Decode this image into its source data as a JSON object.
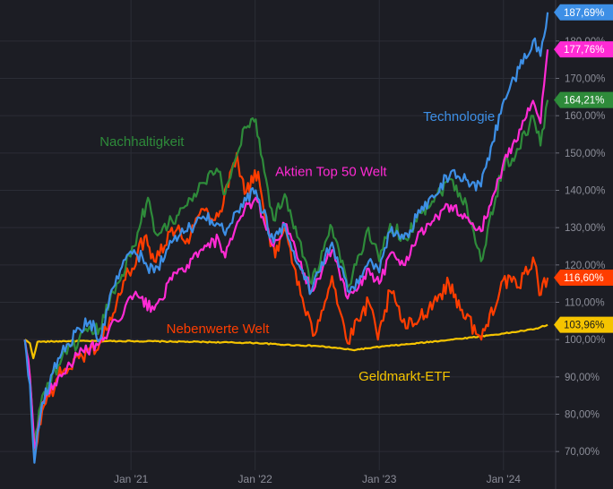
{
  "chart_data": {
    "type": "line",
    "x_axis": {
      "ticks": [
        "Jan '21",
        "Jan '22",
        "Jan '23",
        "Jan '24"
      ],
      "start": "2020-03-01",
      "end": "2024-05-15"
    },
    "y_axis": {
      "unit": "%",
      "ylim": [
        65,
        191
      ],
      "ticks": [
        "70,00%",
        "80,00%",
        "90,00%",
        "100,00%",
        "110,00%",
        "120,00%",
        "130,00%",
        "140,00%",
        "150,00%",
        "160,00%",
        "170,00%",
        "180,00%"
      ],
      "tick_values": [
        70,
        80,
        90,
        100,
        110,
        120,
        130,
        140,
        150,
        160,
        170,
        180
      ]
    },
    "grid": true,
    "series": [
      {
        "name": "Geldmarkt-ETF",
        "color": "#f5c400",
        "last_label": "103,96%",
        "points": [
          [
            "2020-02-24",
            100
          ],
          [
            "2020-03-10",
            99
          ],
          [
            "2020-03-20",
            95
          ],
          [
            "2020-04-01",
            99.4
          ],
          [
            "2020-07-01",
            99.6
          ],
          [
            "2021-01-01",
            99.6
          ],
          [
            "2021-07-01",
            99.4
          ],
          [
            "2022-01-01",
            99.1
          ],
          [
            "2022-04-01",
            98.6
          ],
          [
            "2022-07-01",
            98.3
          ],
          [
            "2022-09-01",
            97.7
          ],
          [
            "2022-10-15",
            97.2
          ],
          [
            "2022-12-01",
            97.7
          ],
          [
            "2023-01-15",
            98.2
          ],
          [
            "2023-04-01",
            98.8
          ],
          [
            "2023-07-01",
            99.7
          ],
          [
            "2023-10-01",
            100.6
          ],
          [
            "2024-01-01",
            101.6
          ],
          [
            "2024-04-01",
            102.8
          ],
          [
            "2024-05-10",
            103.96
          ]
        ]
      },
      {
        "name": "Nebenwerte Welt",
        "color": "#ff3d00",
        "last_label": "116,60%",
        "points": [
          [
            "2020-02-24",
            100
          ],
          [
            "2020-03-10",
            89
          ],
          [
            "2020-03-23",
            69
          ],
          [
            "2020-04-15",
            81
          ],
          [
            "2020-06-01",
            90
          ],
          [
            "2020-08-01",
            95
          ],
          [
            "2020-10-01",
            99
          ],
          [
            "2020-11-10",
            107
          ],
          [
            "2020-12-15",
            116
          ],
          [
            "2021-02-15",
            128
          ],
          [
            "2021-03-10",
            121
          ],
          [
            "2021-05-01",
            130
          ],
          [
            "2021-06-15",
            127
          ],
          [
            "2021-08-01",
            135
          ],
          [
            "2021-09-15",
            133
          ],
          [
            "2021-11-08",
            150
          ],
          [
            "2021-12-01",
            139
          ],
          [
            "2022-01-10",
            145
          ],
          [
            "2022-02-01",
            132
          ],
          [
            "2022-03-01",
            122
          ],
          [
            "2022-03-30",
            130
          ],
          [
            "2022-05-15",
            112
          ],
          [
            "2022-06-20",
            101
          ],
          [
            "2022-08-15",
            117
          ],
          [
            "2022-09-30",
            99
          ],
          [
            "2022-11-01",
            105
          ],
          [
            "2022-12-01",
            110
          ],
          [
            "2022-12-28",
            100
          ],
          [
            "2023-02-02",
            113
          ],
          [
            "2023-03-20",
            103
          ],
          [
            "2023-05-01",
            106
          ],
          [
            "2023-07-25",
            115
          ],
          [
            "2023-09-01",
            108
          ],
          [
            "2023-10-28",
            100
          ],
          [
            "2023-12-31",
            116
          ],
          [
            "2024-02-15",
            114
          ],
          [
            "2024-03-28",
            122
          ],
          [
            "2024-04-20",
            112
          ],
          [
            "2024-05-10",
            116.6
          ]
        ]
      },
      {
        "name": "Nachhaltigkeit",
        "color": "#2e8b3a",
        "last_label": "164,21%",
        "points": [
          [
            "2020-02-24",
            100
          ],
          [
            "2020-03-10",
            90
          ],
          [
            "2020-03-23",
            72
          ],
          [
            "2020-04-15",
            85
          ],
          [
            "2020-06-01",
            93
          ],
          [
            "2020-08-01",
            100
          ],
          [
            "2020-10-01",
            103
          ],
          [
            "2020-11-20",
            115
          ],
          [
            "2021-01-10",
            125
          ],
          [
            "2021-02-20",
            138
          ],
          [
            "2021-03-10",
            129
          ],
          [
            "2021-05-01",
            132
          ],
          [
            "2021-06-15",
            136
          ],
          [
            "2021-08-01",
            142
          ],
          [
            "2021-09-15",
            145
          ],
          [
            "2021-10-05",
            139
          ],
          [
            "2021-12-01",
            157
          ],
          [
            "2022-01-03",
            159
          ],
          [
            "2022-01-28",
            145
          ],
          [
            "2022-02-24",
            132
          ],
          [
            "2022-03-29",
            139
          ],
          [
            "2022-05-10",
            127
          ],
          [
            "2022-06-16",
            115
          ],
          [
            "2022-08-15",
            130
          ],
          [
            "2022-09-30",
            114
          ],
          [
            "2022-10-25",
            120
          ],
          [
            "2022-11-30",
            130
          ],
          [
            "2023-01-01",
            121
          ],
          [
            "2023-02-02",
            131
          ],
          [
            "2023-03-20",
            127
          ],
          [
            "2023-05-01",
            134
          ],
          [
            "2023-07-31",
            143
          ],
          [
            "2023-09-15",
            136
          ],
          [
            "2023-10-27",
            121
          ],
          [
            "2023-12-29",
            146
          ],
          [
            "2024-02-15",
            151
          ],
          [
            "2024-03-28",
            160
          ],
          [
            "2024-04-19",
            152
          ],
          [
            "2024-05-10",
            164.21
          ]
        ]
      },
      {
        "name": "Aktien Top 50 Welt",
        "color": "#ff2ad4",
        "last_label": "177,76%",
        "points": [
          [
            "2020-02-24",
            100
          ],
          [
            "2020-03-10",
            90
          ],
          [
            "2020-03-23",
            71
          ],
          [
            "2020-04-15",
            83
          ],
          [
            "2020-06-01",
            90
          ],
          [
            "2020-08-01",
            96
          ],
          [
            "2020-10-01",
            99
          ],
          [
            "2020-11-20",
            105
          ],
          [
            "2021-01-10",
            112
          ],
          [
            "2021-03-10",
            108
          ],
          [
            "2021-05-01",
            116
          ],
          [
            "2021-06-15",
            120
          ],
          [
            "2021-08-01",
            124
          ],
          [
            "2021-09-15",
            127
          ],
          [
            "2021-10-05",
            122
          ],
          [
            "2021-12-01",
            135
          ],
          [
            "2022-01-03",
            138
          ],
          [
            "2022-02-24",
            125
          ],
          [
            "2022-03-29",
            131
          ],
          [
            "2022-05-10",
            121
          ],
          [
            "2022-06-16",
            113
          ],
          [
            "2022-08-15",
            124
          ],
          [
            "2022-09-30",
            111
          ],
          [
            "2022-11-01",
            114
          ],
          [
            "2022-12-01",
            119
          ],
          [
            "2023-01-01",
            115
          ],
          [
            "2023-02-02",
            123
          ],
          [
            "2023-03-13",
            120
          ],
          [
            "2023-05-01",
            129
          ],
          [
            "2023-07-31",
            136
          ],
          [
            "2023-10-27",
            129
          ],
          [
            "2023-12-29",
            146
          ],
          [
            "2024-03-28",
            164
          ],
          [
            "2024-04-19",
            158
          ],
          [
            "2024-05-10",
            177.76
          ]
        ]
      },
      {
        "name": "Technologie",
        "color": "#3d8fe6",
        "last_label": "187,69%",
        "points": [
          [
            "2020-02-24",
            100
          ],
          [
            "2020-03-10",
            88
          ],
          [
            "2020-03-23",
            67
          ],
          [
            "2020-04-15",
            83
          ],
          [
            "2020-06-01",
            95
          ],
          [
            "2020-08-01",
            103
          ],
          [
            "2020-09-03",
            105
          ],
          [
            "2020-10-01",
            100
          ],
          [
            "2020-11-20",
            117
          ],
          [
            "2021-01-10",
            124
          ],
          [
            "2021-03-10",
            118
          ],
          [
            "2021-05-01",
            126
          ],
          [
            "2021-06-15",
            129
          ],
          [
            "2021-08-01",
            133
          ],
          [
            "2021-09-15",
            131
          ],
          [
            "2021-10-05",
            128
          ],
          [
            "2021-12-01",
            138
          ],
          [
            "2022-01-03",
            140
          ],
          [
            "2022-02-24",
            126
          ],
          [
            "2022-03-29",
            131
          ],
          [
            "2022-05-10",
            120
          ],
          [
            "2022-06-16",
            113
          ],
          [
            "2022-08-15",
            126
          ],
          [
            "2022-09-30",
            113
          ],
          [
            "2022-11-01",
            115
          ],
          [
            "2022-12-01",
            121
          ],
          [
            "2023-01-01",
            118
          ],
          [
            "2023-02-02",
            129
          ],
          [
            "2023-03-13",
            127
          ],
          [
            "2023-05-01",
            134
          ],
          [
            "2023-07-31",
            145
          ],
          [
            "2023-10-27",
            141
          ],
          [
            "2023-12-29",
            163
          ],
          [
            "2024-03-28",
            180
          ],
          [
            "2024-04-19",
            176
          ],
          [
            "2024-05-10",
            187.69
          ]
        ]
      }
    ],
    "annotations": [
      {
        "text": "Technologie",
        "color": "#3d8fe6",
        "x": "2023-05-10",
        "y": 158.6
      },
      {
        "text": "Nachhaltigkeit",
        "color": "#2e8b3a",
        "x": "2020-10-01",
        "y": 151.9
      },
      {
        "text": "Aktien Top 50 Welt",
        "color": "#ff2ad4",
        "x": "2022-03-01",
        "y": 143.8
      },
      {
        "text": "Nebenwerte Welt",
        "color": "#ff3d00",
        "x": "2021-04-15",
        "y": 101.7
      },
      {
        "text": "Geldmarkt-ETF",
        "color": "#f5c400",
        "x": "2022-11-01",
        "y": 89.0
      }
    ]
  }
}
